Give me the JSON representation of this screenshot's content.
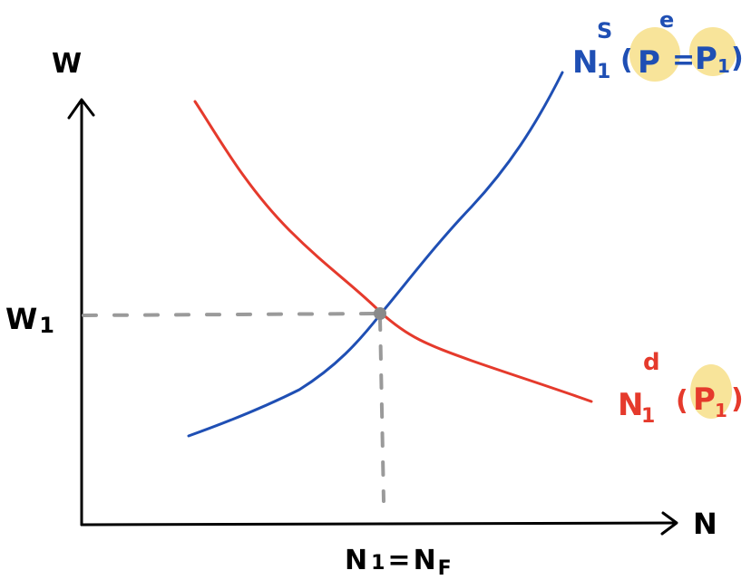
{
  "axes": {
    "y_label": "W",
    "x_label": "N"
  },
  "wage_label": {
    "base": "W",
    "sub": "1"
  },
  "employment_label": {
    "left_base": "N",
    "left_sub": "1",
    "equals": "=",
    "right_base": "N",
    "right_sub": "F"
  },
  "supply_label": {
    "base": "N",
    "sub": "1",
    "sup": "S",
    "open_paren": "(",
    "expected_price_base": "P",
    "expected_price_sup": "e",
    "equals": "=",
    "price_base": "P",
    "price_sub": "1",
    "close_paren": ")"
  },
  "demand_label": {
    "base": "N",
    "sub": "1",
    "sup": "d",
    "open_paren": "(",
    "price_base": "P",
    "price_sub": "1",
    "close_paren": ")"
  },
  "colors": {
    "axis": "#000000",
    "supply": "#1f4fb4",
    "demand": "#e53a2c",
    "guide": "#9a9a9a",
    "equilibrium_point": "#8a8a8a",
    "highlight": "#f8e49a"
  }
}
